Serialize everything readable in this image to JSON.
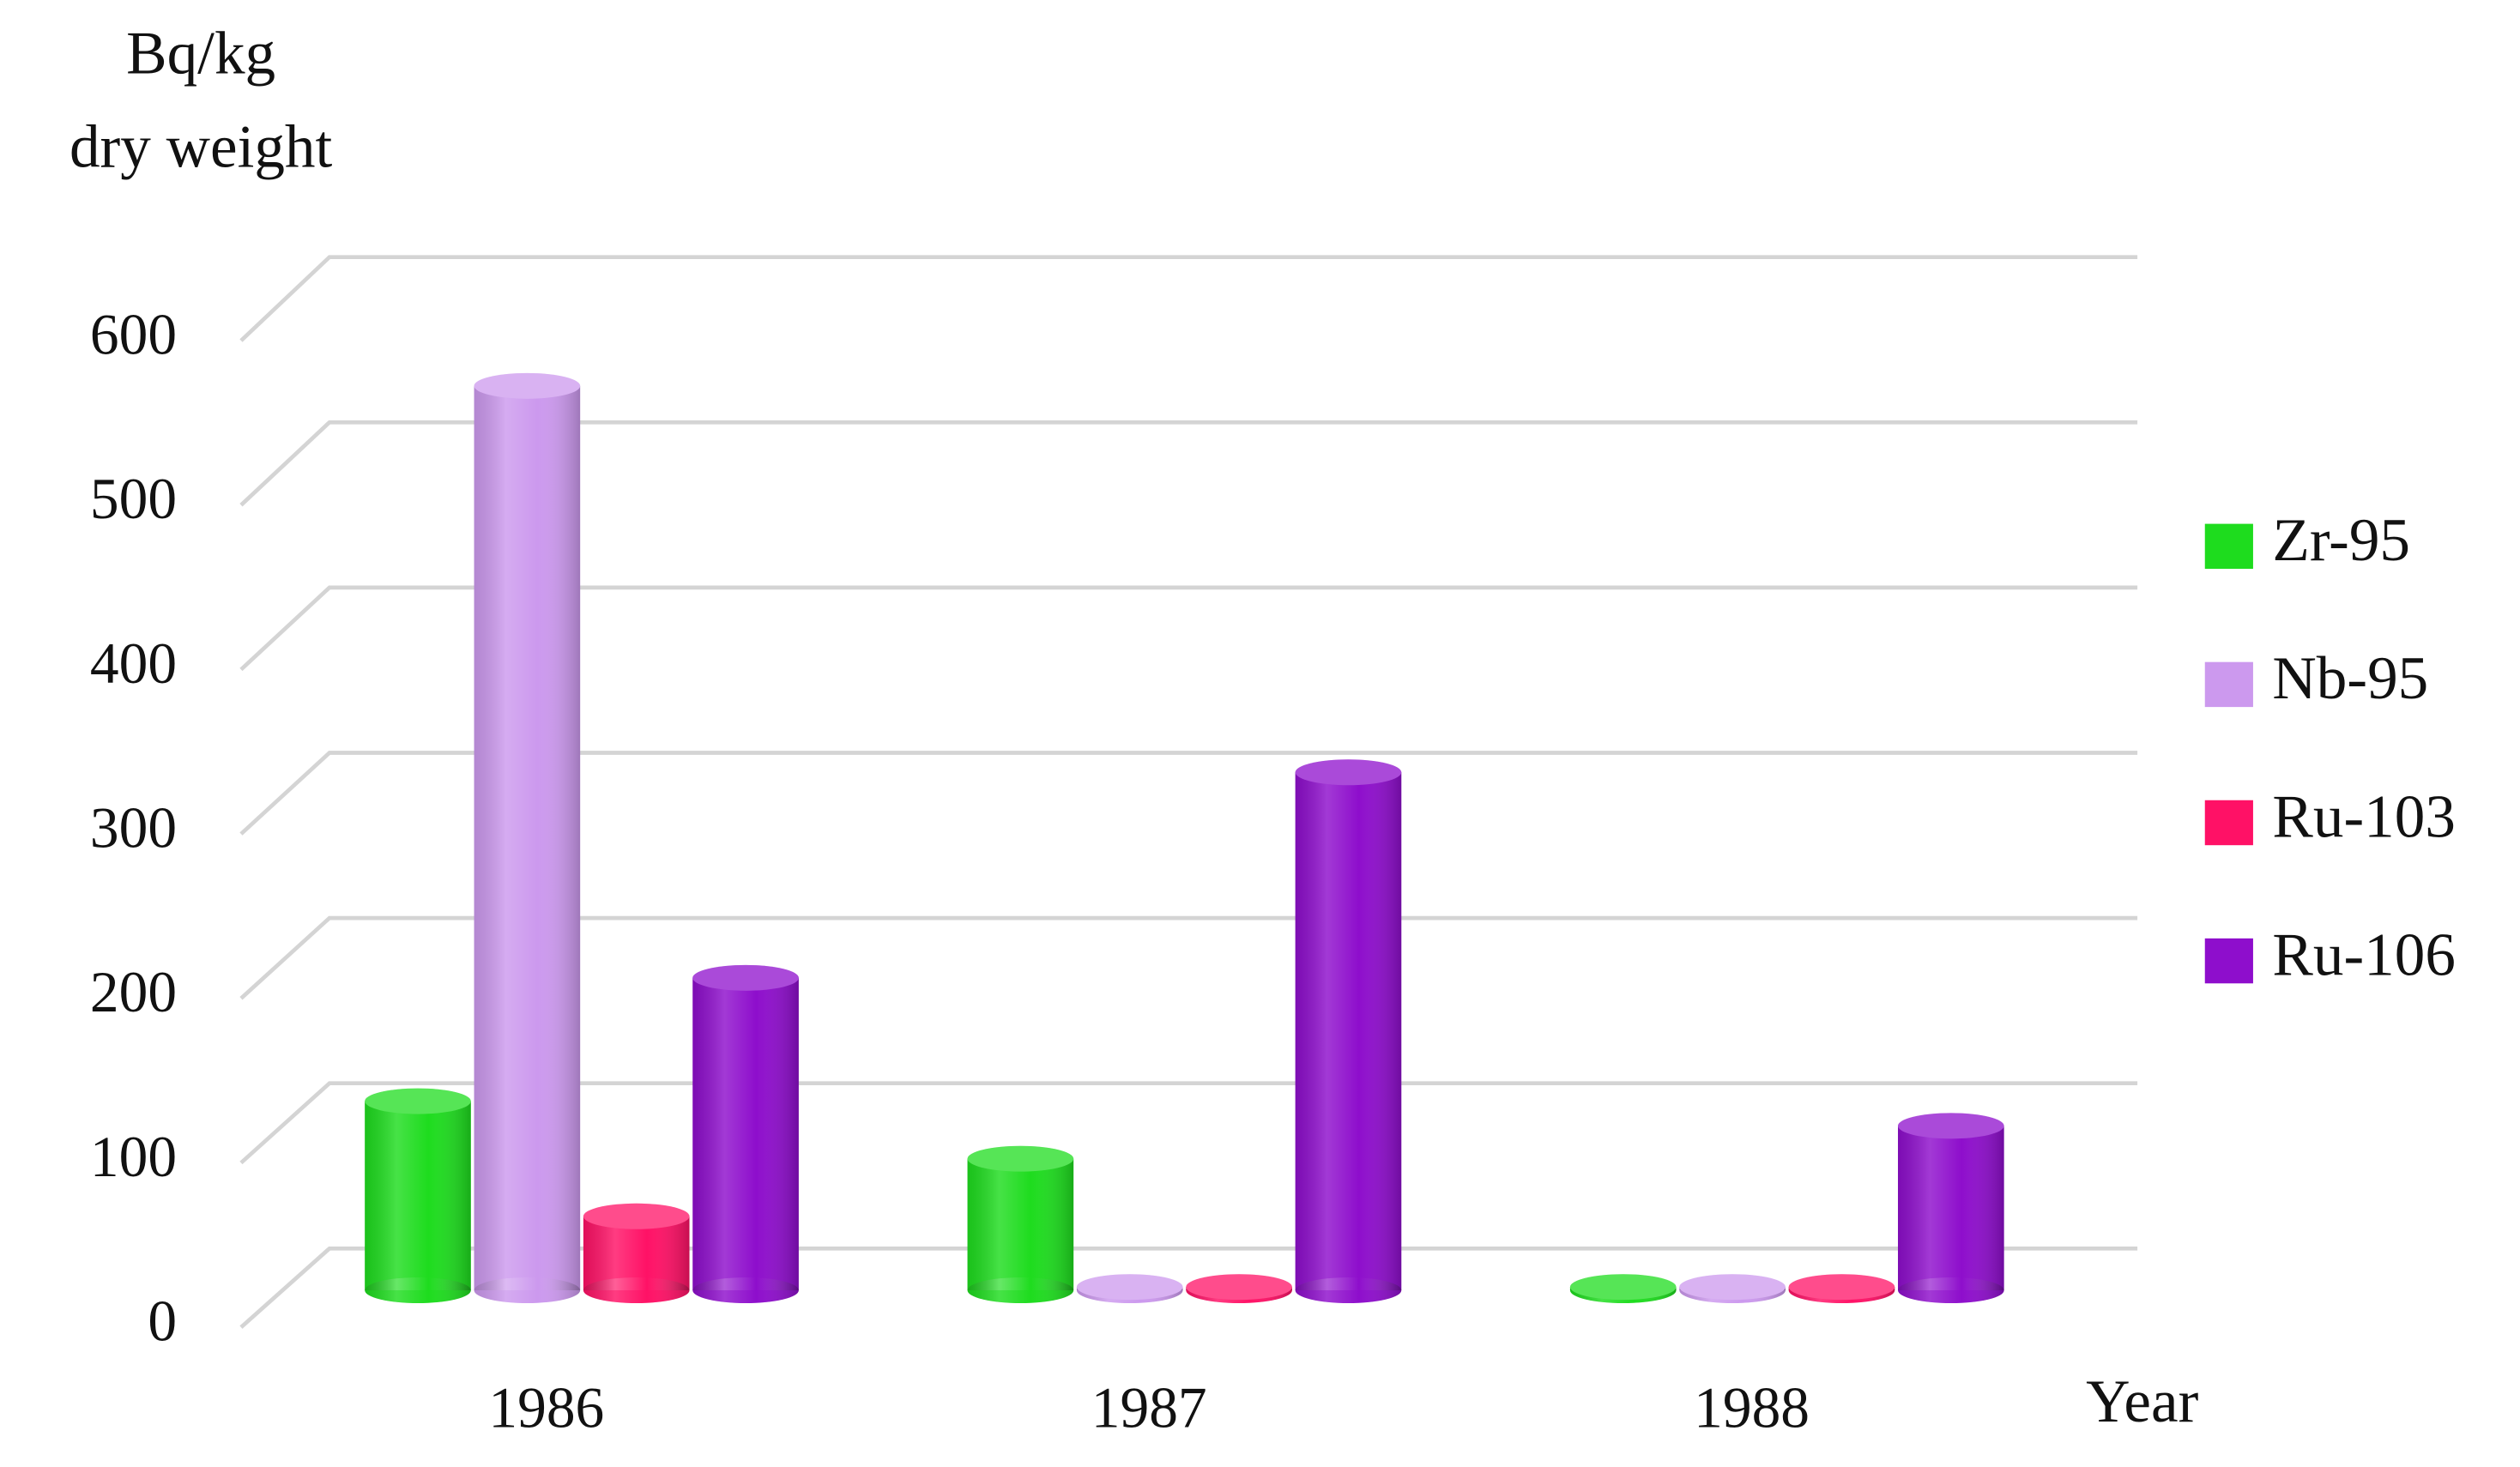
{
  "chart_data": {
    "type": "bar3d",
    "y_label": [
      "Bq/kg",
      "dry weight"
    ],
    "x_label": "Year",
    "categories": [
      "1986",
      "1987",
      "1988"
    ],
    "series": [
      {
        "name": "Zr-95",
        "color": "#1edc1e",
        "values": [
          115,
          80,
          2
        ]
      },
      {
        "name": "Nb-95",
        "color": "#cc99ee",
        "values": [
          550,
          2,
          2
        ]
      },
      {
        "name": "Ru-103",
        "color": "#ff1166",
        "values": [
          45,
          2,
          2
        ]
      },
      {
        "name": "Ru-106",
        "color": "#8e0ecc",
        "values": [
          190,
          315,
          100
        ]
      }
    ],
    "ylim": [
      0,
      600
    ],
    "yticks": [
      0,
      100,
      200,
      300,
      400,
      500,
      600
    ],
    "grid": true,
    "legend": "right"
  }
}
